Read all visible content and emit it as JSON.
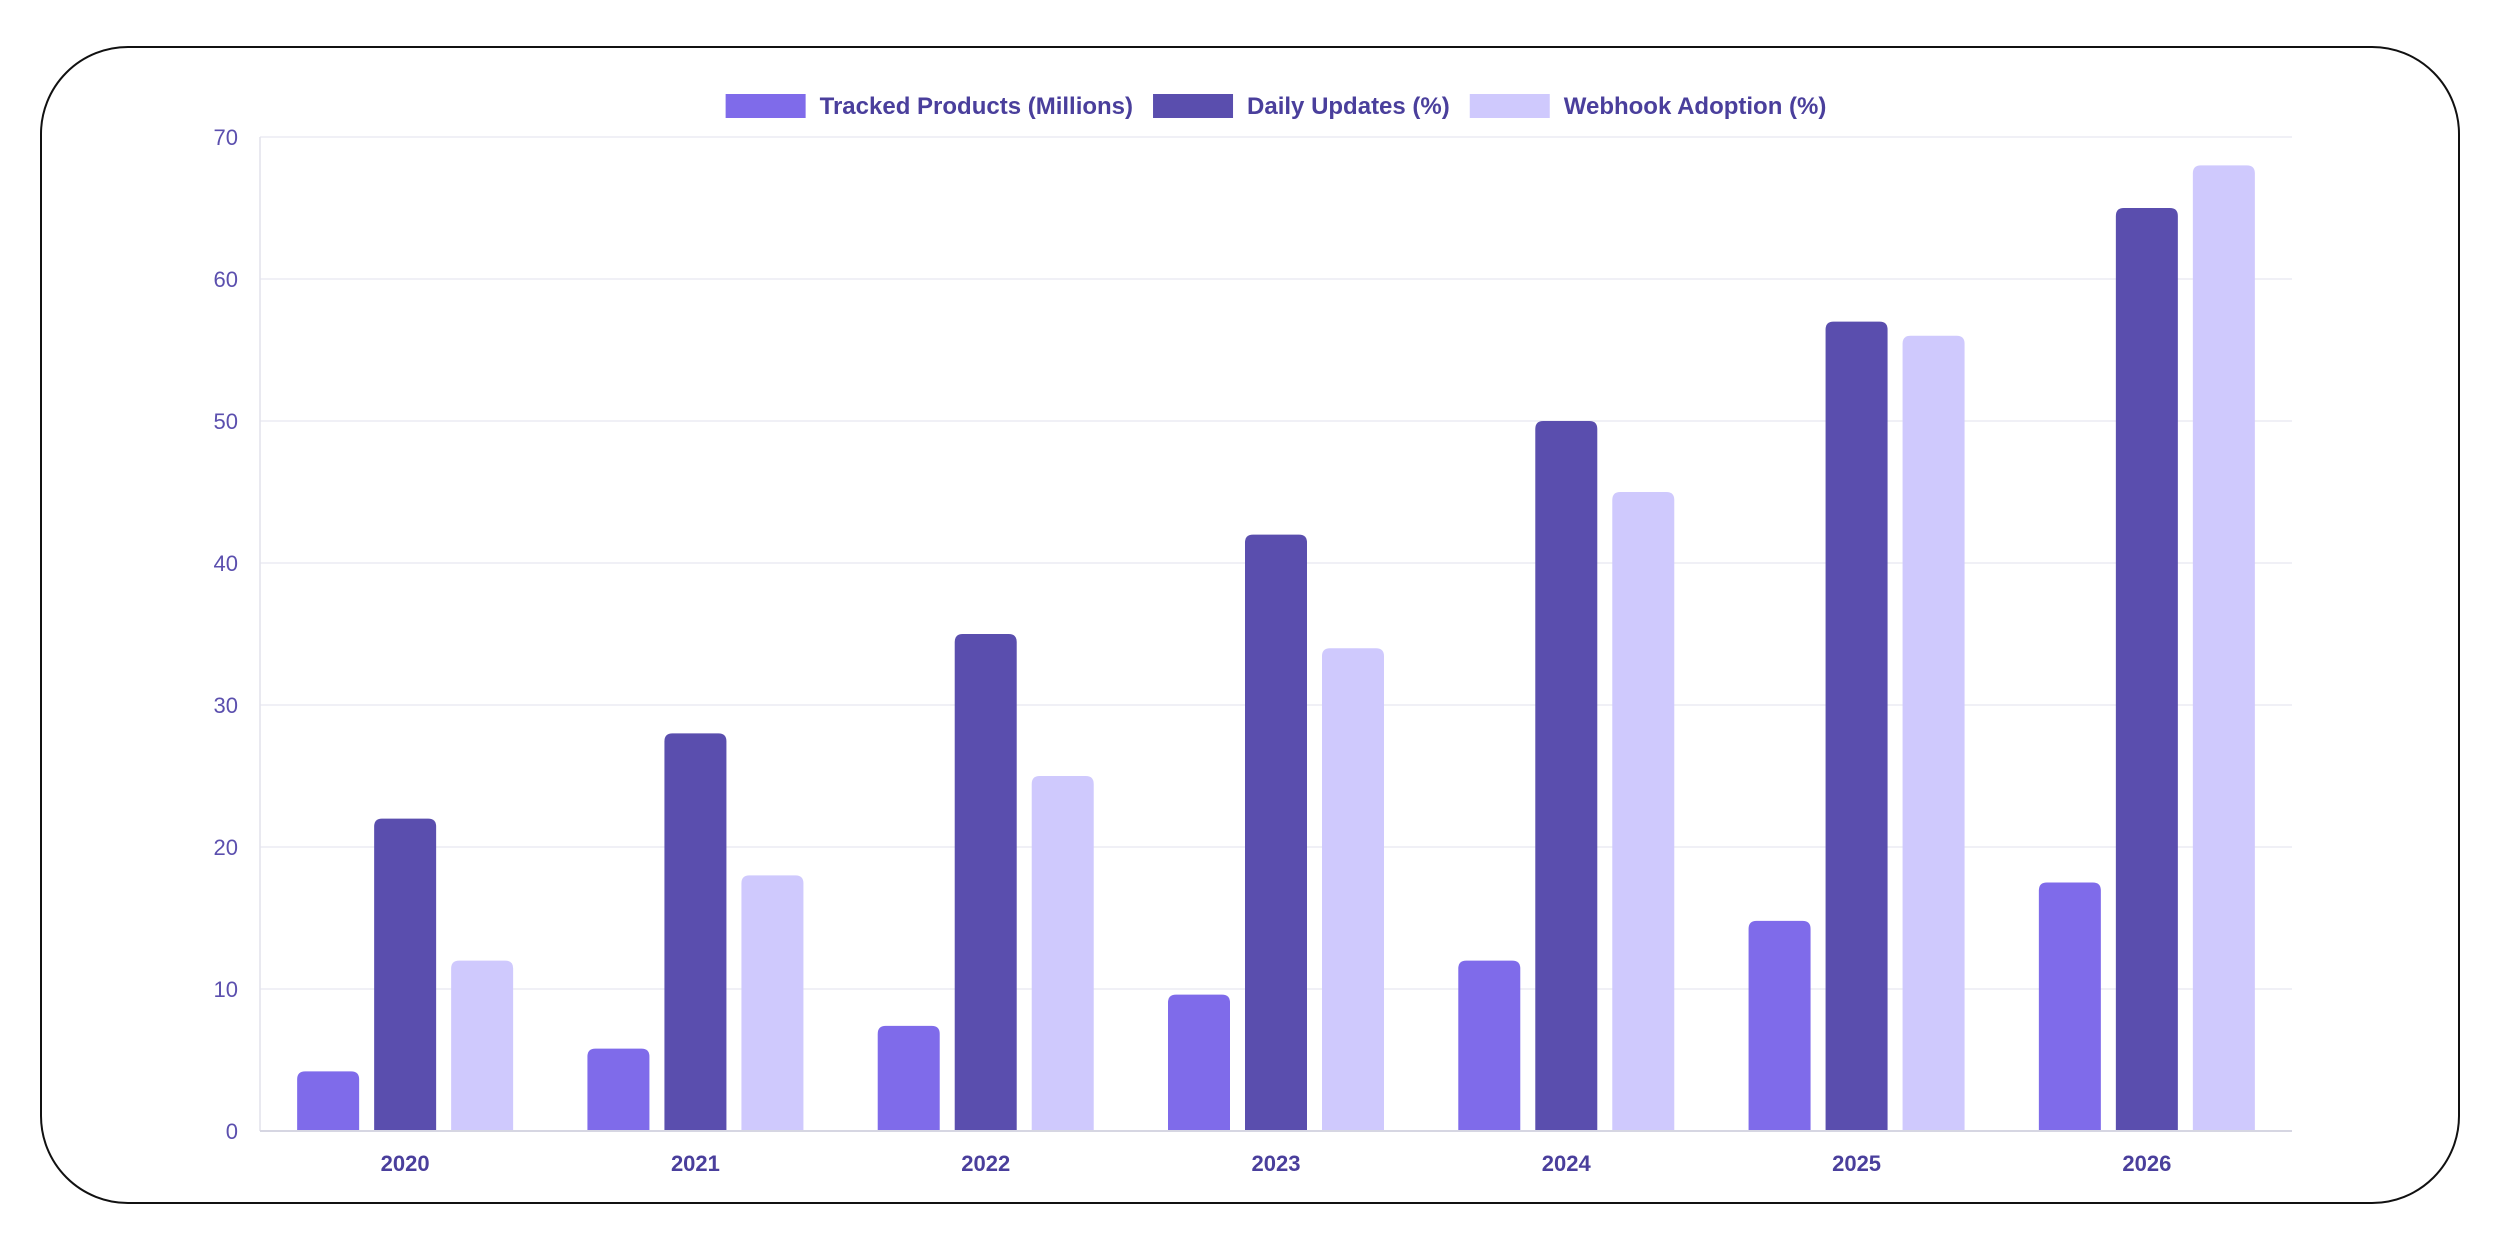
{
  "chart_data": {
    "type": "bar",
    "categories": [
      "2020",
      "2021",
      "2022",
      "2023",
      "2024",
      "2025",
      "2026"
    ],
    "series": [
      {
        "name": "Tracked Products (Millions)",
        "color": "#7f6bea",
        "values": [
          4.2,
          5.8,
          7.4,
          9.6,
          12.0,
          14.8,
          17.5
        ]
      },
      {
        "name": "Daily Updates (%)",
        "color": "#5a4eae",
        "values": [
          22,
          28,
          35,
          42,
          50,
          57,
          65
        ]
      },
      {
        "name": "Webhook Adoption (%)",
        "color": "#cfc9fd",
        "values": [
          12,
          18,
          25,
          34,
          45,
          56,
          68
        ]
      }
    ],
    "yticks": [
      "0",
      "10",
      "20",
      "30",
      "40",
      "50",
      "60",
      "70"
    ],
    "ylim": [
      0,
      70
    ],
    "grid": true,
    "legend_position": "top-center",
    "title": "",
    "xlabel": "",
    "ylabel": ""
  }
}
